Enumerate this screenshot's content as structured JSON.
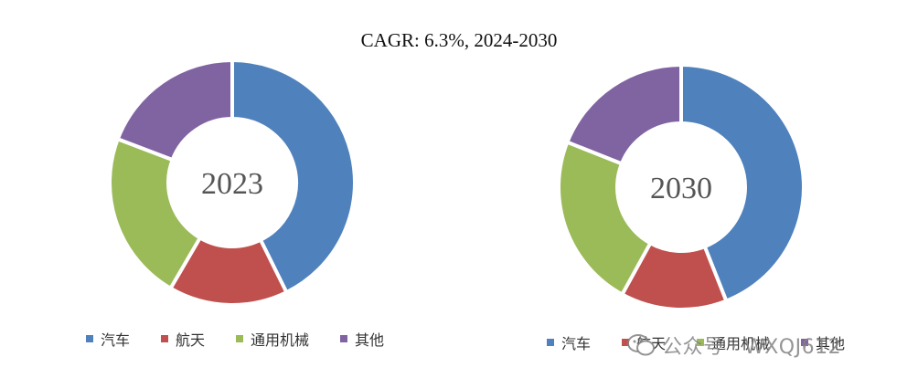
{
  "chart_data": {
    "type": "donut",
    "title": "CAGR:   6.3%, 2024-2030",
    "categories": [
      "汽车",
      "航天",
      "通用机械",
      "其他"
    ],
    "colors": [
      "#4F81BD",
      "#C0504D",
      "#9BBB59",
      "#8064A2"
    ],
    "charts": [
      {
        "center_label": "2023",
        "values": [
          42.7,
          15.7,
          22.4,
          19.2
        ]
      },
      {
        "center_label": "2030",
        "values": [
          44.0,
          14.0,
          23.0,
          19.0
        ]
      }
    ],
    "legend_position": "bottom"
  },
  "watermark": {
    "text": "公众号 · WXQJ612",
    "icon": "wechat-icon"
  }
}
